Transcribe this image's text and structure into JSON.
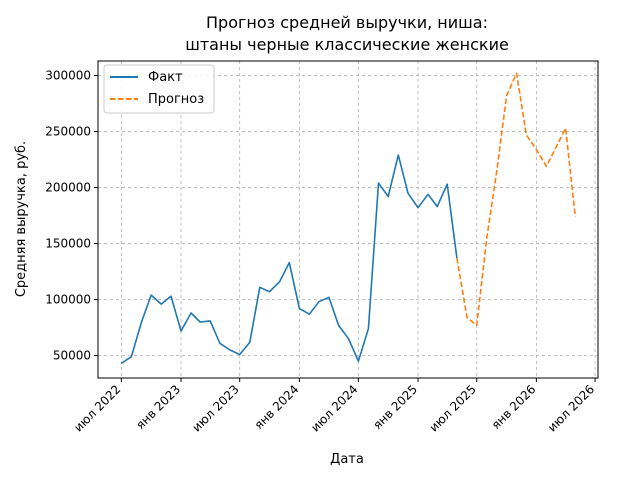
{
  "chart_data": {
    "type": "line",
    "title_lines": [
      "Прогноз средней выручки, ниша:",
      "штаны черные классические женские"
    ],
    "xlabel": "Дата",
    "ylabel": "Средняя выручка, руб.",
    "x_ticks": [
      {
        "date": "2022-07-01",
        "label": "июл 2022"
      },
      {
        "date": "2023-01-01",
        "label": "янв 2023"
      },
      {
        "date": "2023-07-01",
        "label": "июл 2023"
      },
      {
        "date": "2024-01-01",
        "label": "янв 2024"
      },
      {
        "date": "2024-07-01",
        "label": "июл 2024"
      },
      {
        "date": "2025-01-01",
        "label": "янв 2025"
      },
      {
        "date": "2025-07-01",
        "label": "июл 2025"
      },
      {
        "date": "2026-01-01",
        "label": "янв 2026"
      },
      {
        "date": "2026-07-01",
        "label": "июл 2026"
      }
    ],
    "y_ticks": [
      {
        "value": 50000,
        "label": "50000"
      },
      {
        "value": 100000,
        "label": "100000"
      },
      {
        "value": 150000,
        "label": "150000"
      },
      {
        "value": 200000,
        "label": "200000"
      },
      {
        "value": 250000,
        "label": "250000"
      },
      {
        "value": 300000,
        "label": "300000"
      }
    ],
    "xlim": [
      "2022-04-20",
      "2026-07-10"
    ],
    "ylim": [
      30000,
      313000
    ],
    "grid": true,
    "legend_position": "top-left",
    "series": [
      {
        "name": "Факт",
        "color": "#1f77b4",
        "style": "solid",
        "points": [
          {
            "x": "2022-07-01",
            "y": 43000
          },
          {
            "x": "2022-08-01",
            "y": 49000
          },
          {
            "x": "2022-09-01",
            "y": 80000
          },
          {
            "x": "2022-10-01",
            "y": 104000
          },
          {
            "x": "2022-11-01",
            "y": 96000
          },
          {
            "x": "2022-12-01",
            "y": 103000
          },
          {
            "x": "2023-01-01",
            "y": 72000
          },
          {
            "x": "2023-02-01",
            "y": 88000
          },
          {
            "x": "2023-03-01",
            "y": 80000
          },
          {
            "x": "2023-04-01",
            "y": 81000
          },
          {
            "x": "2023-05-01",
            "y": 61000
          },
          {
            "x": "2023-06-01",
            "y": 55000
          },
          {
            "x": "2023-07-01",
            "y": 51000
          },
          {
            "x": "2023-08-01",
            "y": 62000
          },
          {
            "x": "2023-09-01",
            "y": 111000
          },
          {
            "x": "2023-10-01",
            "y": 107000
          },
          {
            "x": "2023-11-01",
            "y": 116000
          },
          {
            "x": "2023-12-01",
            "y": 133000
          },
          {
            "x": "2024-01-01",
            "y": 92000
          },
          {
            "x": "2024-02-01",
            "y": 87000
          },
          {
            "x": "2024-03-01",
            "y": 98000
          },
          {
            "x": "2024-04-01",
            "y": 102000
          },
          {
            "x": "2024-05-01",
            "y": 77000
          },
          {
            "x": "2024-06-01",
            "y": 65000
          },
          {
            "x": "2024-07-01",
            "y": 45000
          },
          {
            "x": "2024-08-01",
            "y": 74000
          },
          {
            "x": "2024-09-01",
            "y": 204000
          },
          {
            "x": "2024-10-01",
            "y": 192000
          },
          {
            "x": "2024-11-01",
            "y": 229000
          },
          {
            "x": "2024-12-01",
            "y": 195000
          },
          {
            "x": "2025-01-01",
            "y": 182000
          },
          {
            "x": "2025-02-01",
            "y": 194000
          },
          {
            "x": "2025-03-01",
            "y": 183000
          },
          {
            "x": "2025-04-01",
            "y": 203000
          },
          {
            "x": "2025-05-01",
            "y": 137000
          }
        ]
      },
      {
        "name": "Прогноз",
        "color": "#ff7f0e",
        "style": "dashed",
        "points": [
          {
            "x": "2025-05-01",
            "y": 137000
          },
          {
            "x": "2025-06-01",
            "y": 84000
          },
          {
            "x": "2025-07-01",
            "y": 77000
          },
          {
            "x": "2025-08-01",
            "y": 155000
          },
          {
            "x": "2025-09-01",
            "y": 215000
          },
          {
            "x": "2025-10-01",
            "y": 282000
          },
          {
            "x": "2025-11-01",
            "y": 302000
          },
          {
            "x": "2025-12-01",
            "y": 247000
          },
          {
            "x": "2026-01-01",
            "y": 234000
          },
          {
            "x": "2026-02-01",
            "y": 219000
          },
          {
            "x": "2026-03-01",
            "y": 235000
          },
          {
            "x": "2026-04-01",
            "y": 253000
          },
          {
            "x": "2026-05-01",
            "y": 174000
          }
        ]
      }
    ]
  }
}
